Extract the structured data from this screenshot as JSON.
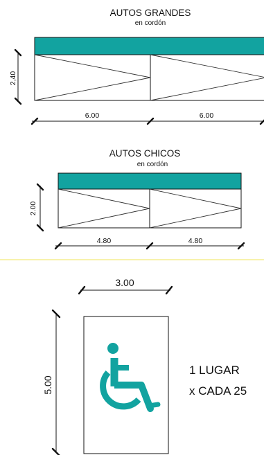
{
  "colors": {
    "teal": "#12a3a0",
    "separator": "#f3ea7b",
    "ink": "#111111"
  },
  "large_cars": {
    "title": "AUTOS GRANDES",
    "subtitle": "en cordón",
    "height_label": "2,40",
    "width_labels": [
      "6.00",
      "6.00"
    ]
  },
  "small_cars": {
    "title": "AUTOS CHICOS",
    "subtitle": "en cordón",
    "height_label": "2.00",
    "width_labels": [
      "4.80",
      "4.80"
    ]
  },
  "accessible_space": {
    "width_label": "3.00",
    "length_label": "5.00",
    "icon": "wheelchair-icon",
    "note_line1": "1  LUGAR",
    "note_line2": "x CADA 25"
  }
}
